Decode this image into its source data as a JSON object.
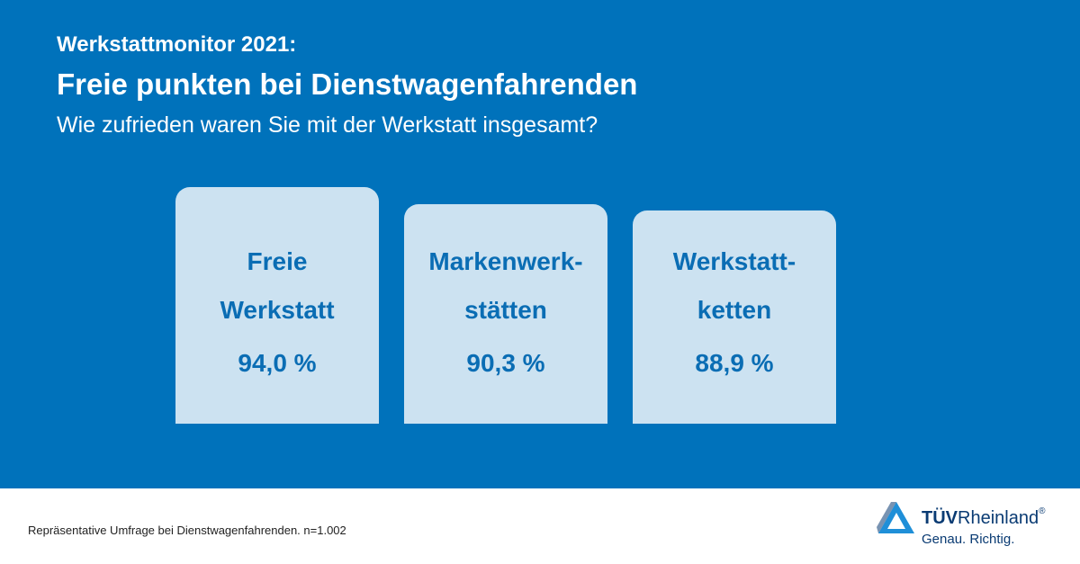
{
  "header": {
    "kicker": "Werkstattmonitor 2021:",
    "title": "Freie punkten bei Dienstwagenfahrenden",
    "question": "Wie zufrieden waren Sie mit der Werkstatt insgesamt?"
  },
  "chart_data": {
    "type": "bar",
    "categories": [
      [
        "Freie",
        "Werkstatt"
      ],
      [
        "Markenwerk-",
        "stätten"
      ],
      [
        "Werkstatt-",
        "ketten"
      ]
    ],
    "values": [
      94.0,
      90.3,
      88.9
    ],
    "value_labels": [
      "94,0 %",
      "90,3 %",
      "88,9 %"
    ],
    "unit": "%"
  },
  "footer": {
    "note": "Repräsentative Umfrage bei Dienstwagenfahrenden. n=1.002",
    "brand_strong": "TÜV",
    "brand_rest": "Rheinland",
    "brand_mark": "®",
    "tagline": "Genau. Richtig."
  },
  "colors": {
    "background": "#0072bb",
    "card": "#cce2f1",
    "card_text": "#0a6db4",
    "brand_dark": "#0a3b73",
    "brand_light": "#1f8fd8"
  }
}
